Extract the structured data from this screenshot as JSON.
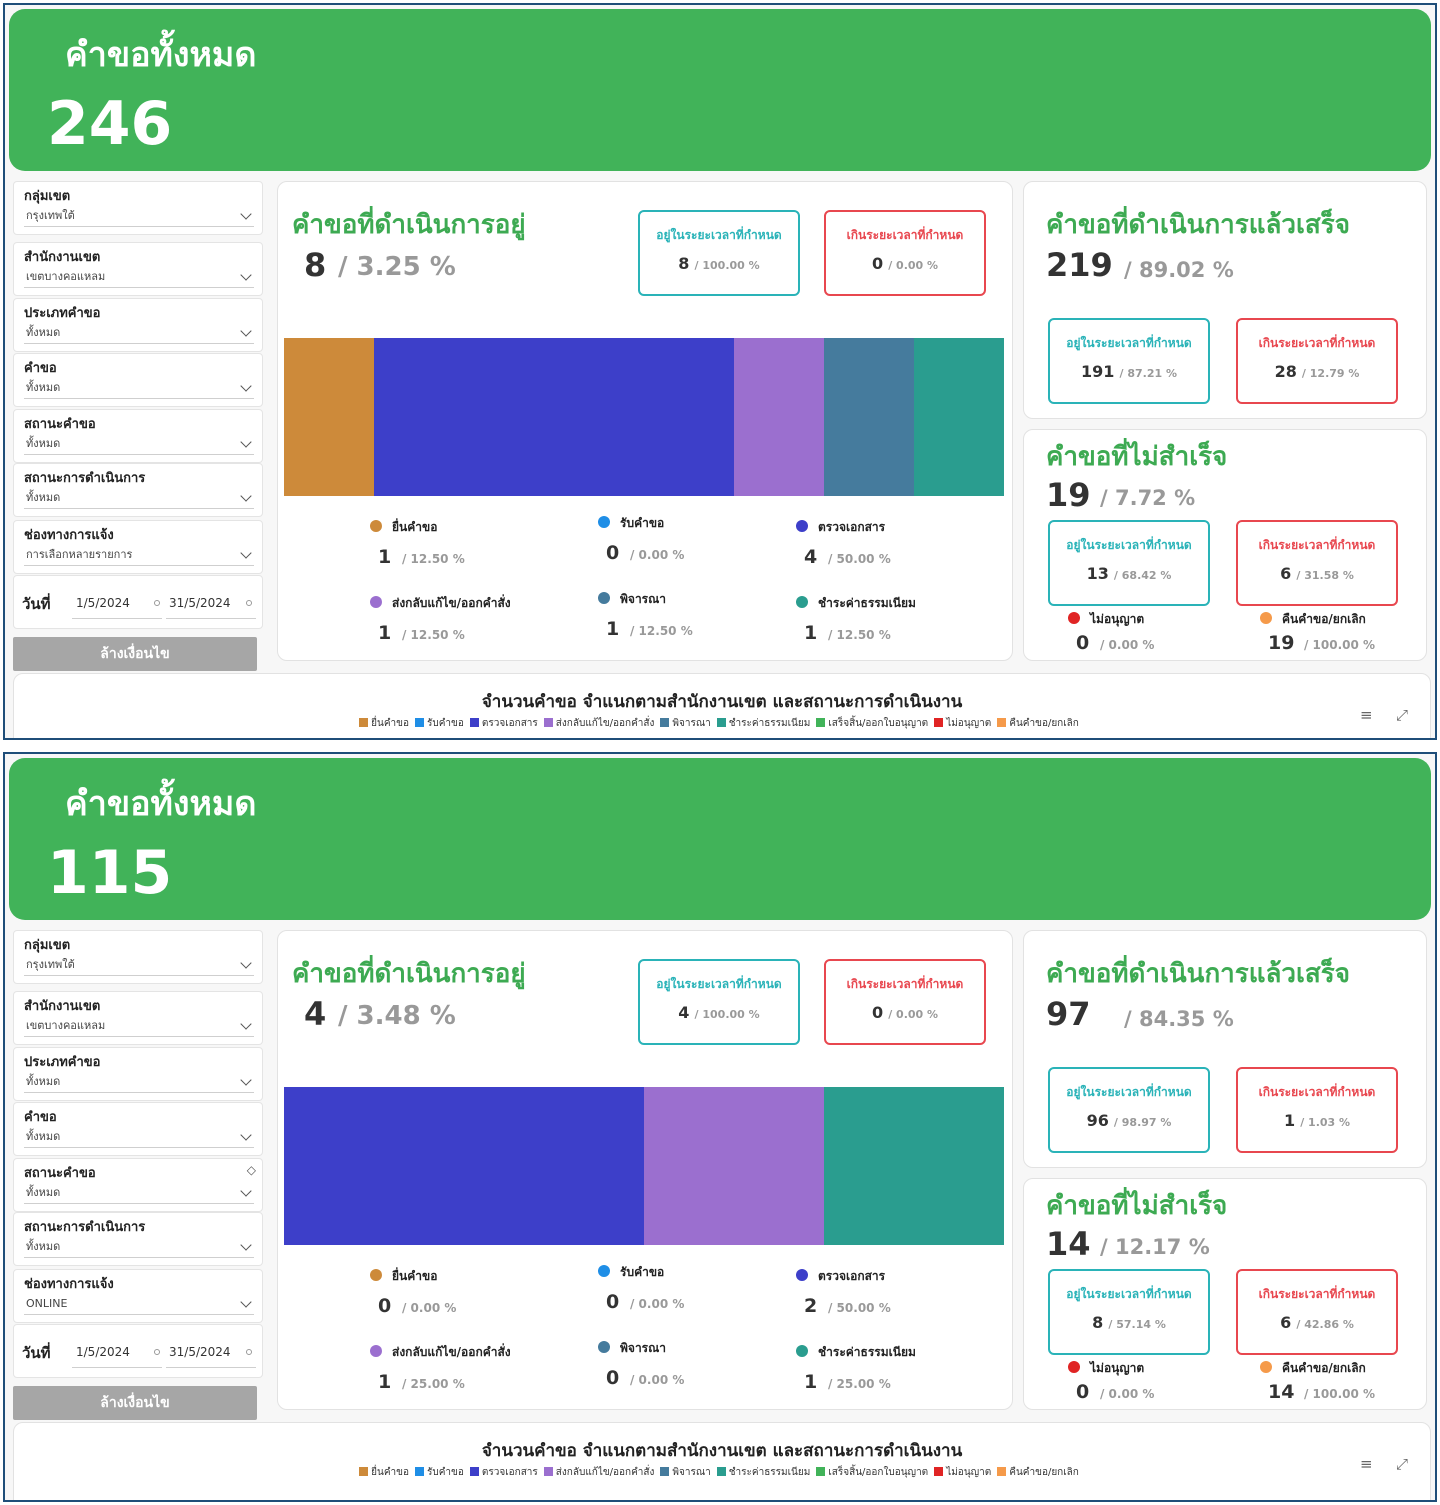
{
  "panels": [
    {
      "total_label": "คำขอทั้งหมด",
      "total_value": "246",
      "filters": [
        {
          "label": "กลุ่มเขต",
          "value": "กรุงเทพใต้"
        },
        {
          "label": "สำนักงานเขต",
          "value": "เขตบางคอแหลม"
        },
        {
          "label": "ประเภทคำขอ",
          "value": "ทั้งหมด"
        },
        {
          "label": "คำขอ",
          "value": "ทั้งหมด"
        },
        {
          "label": "สถานะคำขอ",
          "value": "ทั้งหมด"
        },
        {
          "label": "สถานะการดำเนินการ",
          "value": "ทั้งหมด"
        },
        {
          "label": "ช่องทางการแจ้ง",
          "value": "การเลือกหลายรายการ"
        }
      ],
      "date": {
        "label": "วันที่",
        "from": "1/5/2024",
        "to": "31/5/2024"
      },
      "clear_button": "ล้างเงื่อนไข",
      "in_progress": {
        "title": "คำขอที่ดำเนินการอยู่",
        "count": "8",
        "pct": "/ 3.25 %",
        "within": {
          "label": "อยู่ในระยะเวลาที่กำหนด",
          "count": "8",
          "pct": "/ 100.00 %"
        },
        "over": {
          "label": "เกินระยะเวลาที่กำหนด",
          "count": "0",
          "pct": "/ 0.00 %"
        }
      },
      "chart_data": {
        "type": "bar",
        "stacked": true,
        "categories": [
          "ยื่นคำขอ",
          "รับคำขอ",
          "ตรวจเอกสาร",
          "ส่งกลับแก้ไข/ออกคำสั่ง",
          "พิจารณา",
          "ชำระค่าธรรมเนียม"
        ],
        "values": [
          1,
          0,
          4,
          1,
          1,
          1
        ],
        "colors": [
          "#cd8a3a",
          "#1f8ee6",
          "#3d3fc9",
          "#9b6fcf",
          "#457b9d",
          "#2a9d8f"
        ]
      },
      "legend": [
        {
          "name": "ยื่นคำขอ",
          "num": "1",
          "pct": "/ 12.50 %"
        },
        {
          "name": "รับคำขอ",
          "num": "0",
          "pct": "/ 0.00 %"
        },
        {
          "name": "ตรวจเอกสาร",
          "num": "4",
          "pct": "/ 50.00 %"
        },
        {
          "name": "ส่งกลับแก้ไข/ออกคำสั่ง",
          "num": "1",
          "pct": "/ 12.50 %"
        },
        {
          "name": "พิจารณา",
          "num": "1",
          "pct": "/ 12.50 %"
        },
        {
          "name": "ชำระค่าธรรมเนียม",
          "num": "1",
          "pct": "/ 12.50 %"
        }
      ],
      "completed": {
        "title": "คำขอที่ดำเนินการแล้วเสร็จ",
        "count": "219",
        "pct": "/ 89.02 %",
        "within": {
          "label": "อยู่ในระยะเวลาที่กำหนด",
          "count": "191",
          "pct": "/ 87.21 %"
        },
        "over": {
          "label": "เกินระยะเวลาที่กำหนด",
          "count": "28",
          "pct": "/ 12.79 %"
        }
      },
      "failed": {
        "title": "คำขอที่ไม่สำเร็จ",
        "count": "19",
        "pct": "/ 7.72 %",
        "within": {
          "label": "อยู่ในระยะเวลาที่กำหนด",
          "count": "13",
          "pct": "/ 68.42 %"
        },
        "over": {
          "label": "เกินระยะเวลาที่กำหนด",
          "count": "6",
          "pct": "/ 31.58 %"
        },
        "not_approved": {
          "name": "ไม่อนุญาต",
          "num": "0",
          "pct": "/ 0.00 %"
        },
        "returned": {
          "name": "คืนคำขอ/ยกเลิก",
          "num": "19",
          "pct": "/ 100.00 %"
        }
      },
      "bottom_title": "จำนวนคำขอ จำแนกตามสำนักงานเขต และสถานะการดำเนินงาน",
      "bottom_legend": [
        {
          "name": "ยื่นคำขอ",
          "color": "#cd8a3a"
        },
        {
          "name": "รับคำขอ",
          "color": "#1f8ee6"
        },
        {
          "name": "ตรวจเอกสาร",
          "color": "#3d3fc9"
        },
        {
          "name": "ส่งกลับแก้ไข/ออกคำสั่ง",
          "color": "#9b6fcf"
        },
        {
          "name": "พิจารณา",
          "color": "#457b9d"
        },
        {
          "name": "ชำระค่าธรรมเนียม",
          "color": "#2a9d8f"
        },
        {
          "name": "เสร็จสิ้น/ออกใบอนุญาต",
          "color": "#41b359"
        },
        {
          "name": "ไม่อนุญาต",
          "color": "#e02424"
        },
        {
          "name": "คืนคำขอ/ยกเลิก",
          "color": "#f59a4a"
        }
      ]
    },
    {
      "total_label": "คำขอทั้งหมด",
      "total_value": "115",
      "filters": [
        {
          "label": "กลุ่มเขต",
          "value": "กรุงเทพใต้"
        },
        {
          "label": "สำนักงานเขต",
          "value": "เขตบางคอแหลม"
        },
        {
          "label": "ประเภทคำขอ",
          "value": "ทั้งหมด"
        },
        {
          "label": "คำขอ",
          "value": "ทั้งหมด"
        },
        {
          "label": "สถานะคำขอ",
          "value": "ทั้งหมด"
        },
        {
          "label": "สถานะการดำเนินการ",
          "value": "ทั้งหมด"
        },
        {
          "label": "ช่องทางการแจ้ง",
          "value": "ONLINE"
        }
      ],
      "date": {
        "label": "วันที่",
        "from": "1/5/2024",
        "to": "31/5/2024"
      },
      "clear_button": "ล้างเงื่อนไข",
      "in_progress": {
        "title": "คำขอที่ดำเนินการอยู่",
        "count": "4",
        "pct": "/ 3.48 %",
        "within": {
          "label": "อยู่ในระยะเวลาที่กำหนด",
          "count": "4",
          "pct": "/ 100.00 %"
        },
        "over": {
          "label": "เกินระยะเวลาที่กำหนด",
          "count": "0",
          "pct": "/ 0.00 %"
        }
      },
      "chart_data": {
        "type": "bar",
        "stacked": true,
        "categories": [
          "ยื่นคำขอ",
          "รับคำขอ",
          "ตรวจเอกสาร",
          "ส่งกลับแก้ไข/ออกคำสั่ง",
          "พิจารณา",
          "ชำระค่าธรรมเนียม"
        ],
        "values": [
          0,
          0,
          2,
          1,
          0,
          1
        ],
        "colors": [
          "#cd8a3a",
          "#1f8ee6",
          "#3d3fc9",
          "#9b6fcf",
          "#457b9d",
          "#2a9d8f"
        ]
      },
      "legend": [
        {
          "name": "ยื่นคำขอ",
          "num": "0",
          "pct": "/ 0.00 %"
        },
        {
          "name": "รับคำขอ",
          "num": "0",
          "pct": "/ 0.00 %"
        },
        {
          "name": "ตรวจเอกสาร",
          "num": "2",
          "pct": "/ 50.00 %"
        },
        {
          "name": "ส่งกลับแก้ไข/ออกคำสั่ง",
          "num": "1",
          "pct": "/ 25.00 %"
        },
        {
          "name": "พิจารณา",
          "num": "0",
          "pct": "/ 0.00 %"
        },
        {
          "name": "ชำระค่าธรรมเนียม",
          "num": "1",
          "pct": "/ 25.00 %"
        }
      ],
      "completed": {
        "title": "คำขอที่ดำเนินการแล้วเสร็จ",
        "count": "97",
        "pct": "/ 84.35 %",
        "within": {
          "label": "อยู่ในระยะเวลาที่กำหนด",
          "count": "96",
          "pct": "/ 98.97 %"
        },
        "over": {
          "label": "เกินระยะเวลาที่กำหนด",
          "count": "1",
          "pct": "/ 1.03 %"
        }
      },
      "failed": {
        "title": "คำขอที่ไม่สำเร็จ",
        "count": "14",
        "pct": "/ 12.17 %",
        "within": {
          "label": "อยู่ในระยะเวลาที่กำหนด",
          "count": "8",
          "pct": "/ 57.14 %"
        },
        "over": {
          "label": "เกินระยะเวลาที่กำหนด",
          "count": "6",
          "pct": "/ 42.86 %"
        },
        "not_approved": {
          "name": "ไม่อนุญาต",
          "num": "0",
          "pct": "/ 0.00 %"
        },
        "returned": {
          "name": "คืนคำขอ/ยกเลิก",
          "num": "14",
          "pct": "/ 100.00 %"
        }
      },
      "bottom_title": "จำนวนคำขอ จำแนกตามสำนักงานเขต และสถานะการดำเนินงาน",
      "bottom_legend": [
        {
          "name": "ยื่นคำขอ",
          "color": "#cd8a3a"
        },
        {
          "name": "รับคำขอ",
          "color": "#1f8ee6"
        },
        {
          "name": "ตรวจเอกสาร",
          "color": "#3d3fc9"
        },
        {
          "name": "ส่งกลับแก้ไข/ออกคำสั่ง",
          "color": "#9b6fcf"
        },
        {
          "name": "พิจารณา",
          "color": "#457b9d"
        },
        {
          "name": "ชำระค่าธรรมเนียม",
          "color": "#2a9d8f"
        },
        {
          "name": "เสร็จสิ้น/ออกใบอนุญาต",
          "color": "#41b359"
        },
        {
          "name": "ไม่อนุญาต",
          "color": "#e02424"
        },
        {
          "name": "คืนคำขอ/ยกเลิก",
          "color": "#f59a4a"
        }
      ],
      "status_filter_has_eraser": true
    }
  ],
  "colors": {
    "banner": "#41b359",
    "title_green": "#3daa52",
    "teal": "#2ab3b8",
    "red": "#e8474f",
    "not_approved_dot": "#e02424",
    "returned_dot": "#f59a4a"
  },
  "icons": {
    "filter": "filter-icon",
    "expand": "expand-icon",
    "chevron": "chevron-down-icon",
    "eraser": "eraser-icon"
  }
}
